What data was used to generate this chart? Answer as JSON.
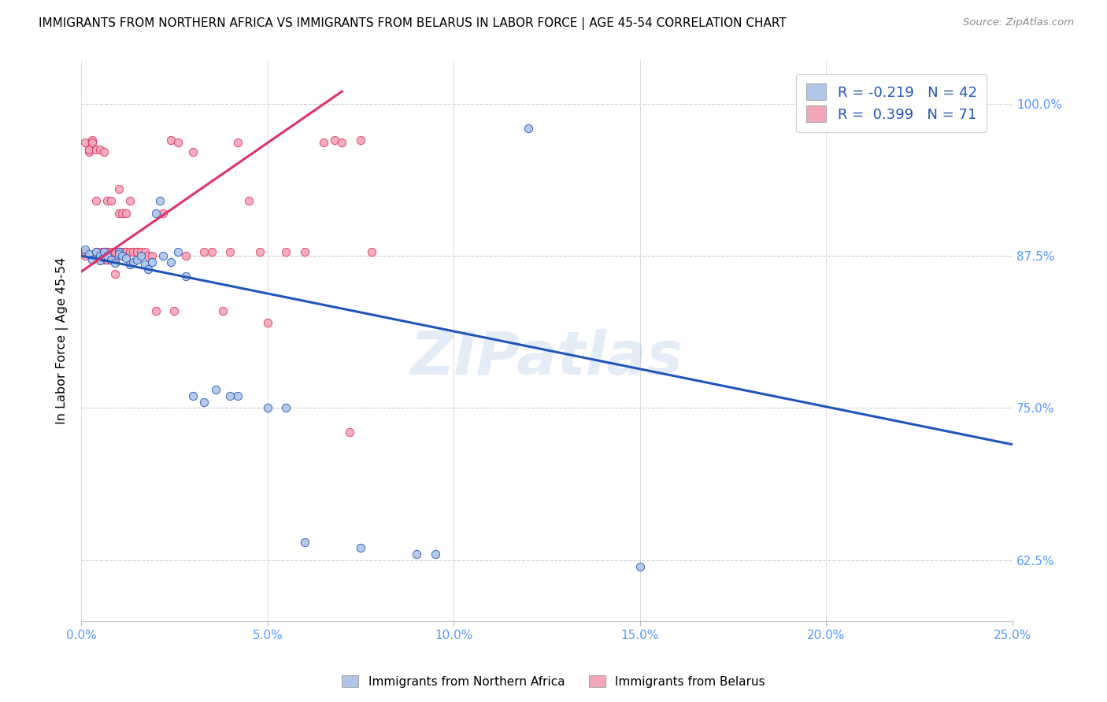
{
  "title": "IMMIGRANTS FROM NORTHERN AFRICA VS IMMIGRANTS FROM BELARUS IN LABOR FORCE | AGE 45-54 CORRELATION CHART",
  "source": "Source: ZipAtlas.com",
  "ylabel": "In Labor Force | Age 45-54",
  "xlim": [
    0.0,
    0.25
  ],
  "ylim": [
    0.575,
    1.035
  ],
  "blue_R": -0.219,
  "blue_N": 42,
  "pink_R": 0.399,
  "pink_N": 71,
  "blue_color": "#aec6e8",
  "pink_color": "#f4a7b9",
  "blue_line_color": "#2255bb",
  "pink_line_color": "#dd3366",
  "watermark": "ZIPatlas",
  "legend_blue_label": "Immigrants from Northern Africa",
  "legend_pink_label": "Immigrants from Belarus",
  "x_tick_vals": [
    0.0,
    0.05,
    0.1,
    0.15,
    0.2,
    0.25
  ],
  "x_tick_labels": [
    "0.0%",
    "5.0%",
    "10.0%",
    "15.0%",
    "20.0%",
    "25.0%"
  ],
  "y_tick_vals": [
    0.625,
    0.75,
    0.875,
    1.0
  ],
  "y_tick_labels": [
    "62.5%",
    "75.0%",
    "87.5%",
    "100.0%"
  ],
  "blue_line_x0": 0.0,
  "blue_line_y0": 0.875,
  "blue_line_x1": 0.25,
  "blue_line_y1": 0.72,
  "pink_line_x0": 0.0,
  "pink_line_y0": 0.862,
  "pink_line_x1": 0.07,
  "pink_line_y1": 1.01,
  "blue_scatter_x": [
    0.001,
    0.002,
    0.003,
    0.004,
    0.005,
    0.005,
    0.006,
    0.006,
    0.007,
    0.008,
    0.009,
    0.01,
    0.01,
    0.011,
    0.012,
    0.013,
    0.014,
    0.015,
    0.016,
    0.017,
    0.018,
    0.019,
    0.02,
    0.021,
    0.022,
    0.024,
    0.026,
    0.028,
    0.03,
    0.033,
    0.036,
    0.04,
    0.042,
    0.05,
    0.055,
    0.06,
    0.075,
    0.09,
    0.095,
    0.12,
    0.15,
    0.2
  ],
  "blue_scatter_y": [
    0.88,
    0.876,
    0.872,
    0.878,
    0.875,
    0.871,
    0.874,
    0.878,
    0.875,
    0.872,
    0.869,
    0.878,
    0.876,
    0.875,
    0.873,
    0.868,
    0.87,
    0.872,
    0.875,
    0.868,
    0.864,
    0.87,
    0.91,
    0.92,
    0.875,
    0.87,
    0.878,
    0.858,
    0.76,
    0.755,
    0.765,
    0.76,
    0.76,
    0.75,
    0.75,
    0.64,
    0.635,
    0.63,
    0.63,
    0.98,
    0.62,
    1.0
  ],
  "pink_scatter_x": [
    0.001,
    0.001,
    0.001,
    0.002,
    0.002,
    0.002,
    0.003,
    0.003,
    0.003,
    0.004,
    0.004,
    0.004,
    0.005,
    0.005,
    0.005,
    0.005,
    0.006,
    0.006,
    0.006,
    0.006,
    0.007,
    0.007,
    0.007,
    0.007,
    0.008,
    0.008,
    0.008,
    0.008,
    0.009,
    0.009,
    0.009,
    0.01,
    0.01,
    0.01,
    0.011,
    0.011,
    0.012,
    0.012,
    0.012,
    0.013,
    0.013,
    0.014,
    0.015,
    0.015,
    0.016,
    0.017,
    0.018,
    0.019,
    0.02,
    0.022,
    0.024,
    0.025,
    0.026,
    0.028,
    0.03,
    0.033,
    0.035,
    0.038,
    0.04,
    0.042,
    0.045,
    0.048,
    0.05,
    0.055,
    0.06,
    0.065,
    0.068,
    0.07,
    0.072,
    0.075,
    0.078
  ],
  "pink_scatter_y": [
    0.878,
    0.875,
    0.968,
    0.962,
    0.96,
    0.962,
    0.968,
    0.97,
    0.968,
    0.92,
    0.962,
    0.878,
    0.878,
    0.876,
    0.872,
    0.962,
    0.878,
    0.872,
    0.878,
    0.96,
    0.92,
    0.878,
    0.872,
    0.878,
    0.872,
    0.878,
    0.92,
    0.876,
    0.878,
    0.872,
    0.86,
    0.93,
    0.878,
    0.91,
    0.91,
    0.878,
    0.878,
    0.91,
    0.878,
    0.878,
    0.92,
    0.878,
    0.878,
    0.878,
    0.878,
    0.878,
    0.875,
    0.875,
    0.83,
    0.91,
    0.97,
    0.83,
    0.968,
    0.875,
    0.96,
    0.878,
    0.878,
    0.83,
    0.878,
    0.968,
    0.92,
    0.878,
    0.82,
    0.878,
    0.878,
    0.968,
    0.97,
    0.968,
    0.73,
    0.97,
    0.878
  ]
}
